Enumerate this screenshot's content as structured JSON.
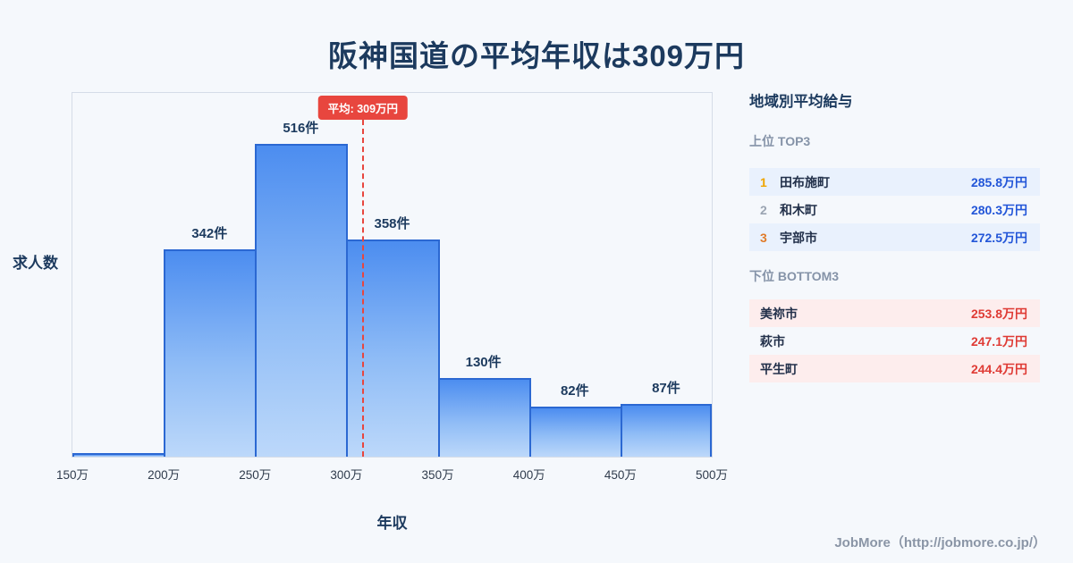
{
  "title": "阪神国道の平均年収は309万円",
  "chart_data": {
    "type": "bar",
    "title": "阪神国道の平均年収は309万円",
    "xlabel": "年収",
    "ylabel": "求人数",
    "categories": [
      "150万",
      "200万",
      "250万",
      "300万",
      "350万",
      "400万",
      "450万",
      "500万"
    ],
    "bins": [
      "150万-200万",
      "200万-250万",
      "250万-300万",
      "300万-350万",
      "350万-400万",
      "400万-450万",
      "450万-500万"
    ],
    "values": [
      6,
      342,
      516,
      358,
      130,
      82,
      87
    ],
    "bar_labels": [
      "",
      "342件",
      "516件",
      "358件",
      "130件",
      "82件",
      "87件"
    ],
    "x_range": [
      150,
      500
    ],
    "ylim": [
      0,
      600
    ],
    "grid": false,
    "average": 309,
    "average_label": "平均: 309万円"
  },
  "sidebar": {
    "title": "地域別平均給与",
    "top": {
      "heading": "上位 TOP3",
      "rows": [
        {
          "rank": "1",
          "name": "田布施町",
          "value": "285.8万円"
        },
        {
          "rank": "2",
          "name": "和木町",
          "value": "280.3万円"
        },
        {
          "rank": "3",
          "name": "宇部市",
          "value": "272.5万円"
        }
      ]
    },
    "bottom": {
      "heading": "下位 BOTTOM3",
      "rows": [
        {
          "name": "美祢市",
          "value": "253.8万円"
        },
        {
          "name": "萩市",
          "value": "247.1万円"
        },
        {
          "name": "平生町",
          "value": "244.4万円"
        }
      ]
    }
  },
  "footer": {
    "credit": "JobMore（http://jobmore.co.jp/）"
  },
  "colors": {
    "title_navy": "#1c3a5e",
    "bar_top": "#4c8df0",
    "bar_bottom": "#bcd8fa",
    "bar_border": "#2b68d2",
    "average_red": "#e8463e",
    "top_value": "#2356d8",
    "bottom_value": "#df3b35"
  }
}
